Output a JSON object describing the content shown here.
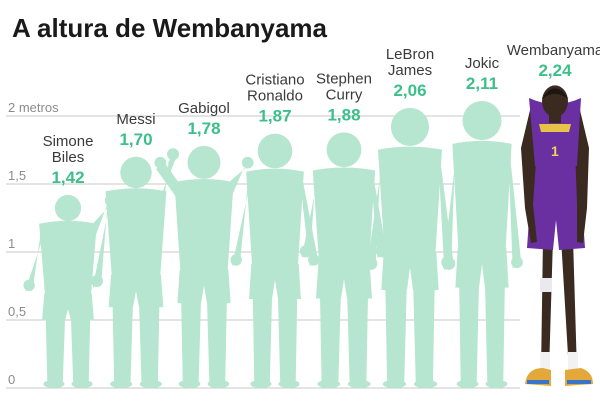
{
  "chart_data": {
    "type": "bar",
    "title": "A altura de Wembanyama",
    "ylabel": "",
    "ylim": [
      0,
      2.24
    ],
    "yticks": [
      {
        "value": 0,
        "label": "0"
      },
      {
        "value": 0.5,
        "label": "0,5"
      },
      {
        "value": 1,
        "label": "1"
      },
      {
        "value": 1.5,
        "label": "1,5"
      },
      {
        "value": 2,
        "label": "2 metros"
      }
    ],
    "grid": true,
    "bar_style": "green human silhouettes",
    "highlight_style": "player photo",
    "categories": [
      {
        "name": [
          "Simone",
          "Biles"
        ],
        "value": 1.42,
        "label": "1,42"
      },
      {
        "name": [
          "Messi"
        ],
        "value": 1.7,
        "label": "1,70"
      },
      {
        "name": [
          "Gabigol"
        ],
        "value": 1.78,
        "label": "1,78"
      },
      {
        "name": [
          "Cristiano",
          "Ronaldo"
        ],
        "value": 1.87,
        "label": "1,87"
      },
      {
        "name": [
          "Stephen",
          "Curry"
        ],
        "value": 1.88,
        "label": "1,88"
      },
      {
        "name": [
          "LeBron",
          "James"
        ],
        "value": 2.06,
        "label": "2,06"
      },
      {
        "name": [
          "Jokic"
        ],
        "value": 2.11,
        "label": "2,11"
      },
      {
        "name": [
          "Wembanyama"
        ],
        "value": 2.24,
        "label": "2,24",
        "highlight": true
      }
    ],
    "colors": {
      "silhouette": "#b6e6cf",
      "value_label": "#3cbf8a",
      "jersey": "#6a2fa0",
      "skin": "#3b2a20"
    }
  }
}
